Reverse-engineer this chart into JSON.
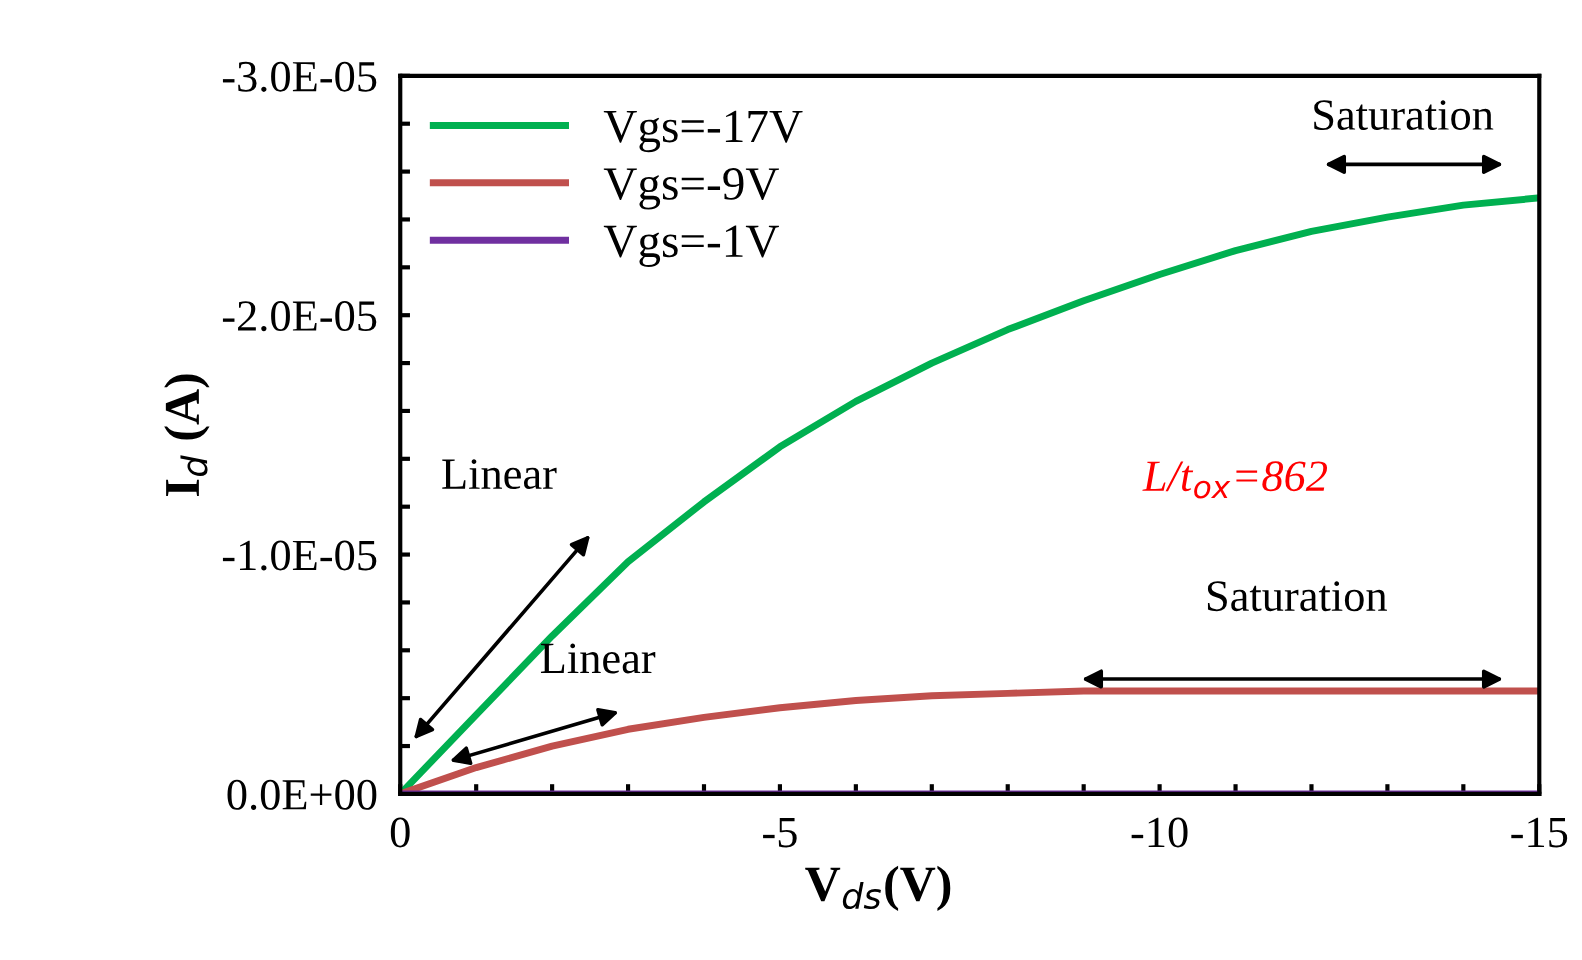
{
  "chart_data": {
    "type": "line",
    "xlabel": "V$_{ds}$(V)",
    "ylabel": "I$_{d}$ (A)",
    "x": [
      0,
      -1,
      -2,
      -3,
      -4,
      -5,
      -6,
      -7,
      -8,
      -9,
      -10,
      -11,
      -12,
      -13,
      -14,
      -15
    ],
    "series": [
      {
        "name": "Vgs=-17V",
        "color": "#00b050",
        "values": [
          0,
          -3.3e-06,
          -6.6e-06,
          -9.7e-06,
          -1.22e-05,
          -1.45e-05,
          -1.64e-05,
          -1.8e-05,
          -1.94e-05,
          -2.06e-05,
          -2.17e-05,
          -2.27e-05,
          -2.35e-05,
          -2.41e-05,
          -2.46e-05,
          -2.49e-05
        ]
      },
      {
        "name": "Vgs=-9V",
        "color": "#c0504d",
        "values": [
          0,
          -1.1e-06,
          -2e-06,
          -2.7e-06,
          -3.2e-06,
          -3.6e-06,
          -3.9e-06,
          -4.1e-06,
          -4.2e-06,
          -4.3e-06,
          -4.3e-06,
          -4.3e-06,
          -4.3e-06,
          -4.3e-06,
          -4.3e-06,
          -4.3e-06
        ]
      },
      {
        "name": "Vgs=-1V",
        "color": "#7030a0",
        "values": [
          0,
          0,
          0,
          0,
          0,
          0,
          0,
          0,
          0,
          0,
          0,
          0,
          0,
          0,
          0,
          0
        ]
      }
    ],
    "xlim": [
      0,
      -15
    ],
    "xticks": [
      0,
      {
        "value": -1,
        "label": null
      },
      {
        "value": -2,
        "label": null
      },
      {
        "value": -3,
        "label": null
      },
      {
        "value": -4,
        "label": null
      },
      -5,
      {
        "value": -6,
        "label": null
      },
      {
        "value": -7,
        "label": null
      },
      {
        "value": -8,
        "label": null
      },
      {
        "value": -9,
        "label": null
      },
      -10,
      {
        "value": -11,
        "label": null
      },
      {
        "value": -12,
        "label": null
      },
      {
        "value": -13,
        "label": null
      },
      {
        "value": -14,
        "label": null
      },
      -15
    ],
    "ylim": [
      0,
      -3e-05
    ],
    "yticks": [
      {
        "value": 0,
        "label": "0.0E+00"
      },
      {
        "value": -2e-06,
        "label": null
      },
      {
        "value": -4e-06,
        "label": null
      },
      {
        "value": -6e-06,
        "label": null
      },
      {
        "value": -8e-06,
        "label": null
      },
      {
        "value": -1e-05,
        "label": "-1.0E-05"
      },
      {
        "value": -1.2e-05,
        "label": null
      },
      {
        "value": -1.4e-05,
        "label": null
      },
      {
        "value": -1.6e-05,
        "label": null
      },
      {
        "value": -1.8e-05,
        "label": null
      },
      {
        "value": -2e-05,
        "label": "-2.0E-05"
      },
      {
        "value": -2.2e-05,
        "label": null
      },
      {
        "value": -2.4e-05,
        "label": null
      },
      {
        "value": -2.6e-05,
        "label": null
      },
      {
        "value": -2.8e-05,
        "label": null
      },
      {
        "value": -3e-05,
        "label": "-3.0E-05"
      }
    ],
    "annotations": [
      "Linear",
      "Linear",
      "Saturation",
      "Saturation",
      "L/t$_{ox}$=862"
    ],
    "legend": "top left",
    "grid": false,
    "marker": "none",
    "line_style": "solid"
  }
}
